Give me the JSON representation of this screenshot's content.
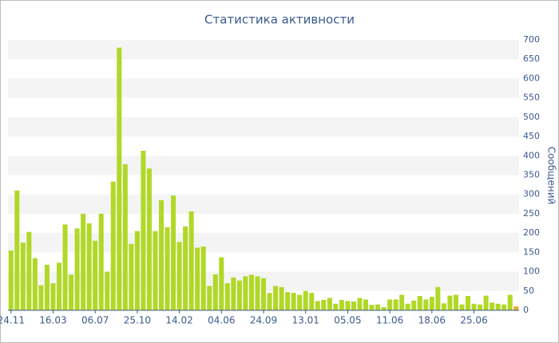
{
  "chart_data": {
    "type": "bar",
    "title": "Статистика активности",
    "y_label": "Сообщений",
    "categories": [
      "24.11",
      null,
      null,
      null,
      null,
      null,
      null,
      "16.03",
      null,
      null,
      null,
      null,
      null,
      null,
      "06.07",
      null,
      null,
      null,
      null,
      null,
      null,
      "25.10",
      null,
      null,
      null,
      null,
      null,
      null,
      "14.02",
      null,
      null,
      null,
      null,
      null,
      null,
      "04.06",
      null,
      null,
      null,
      null,
      null,
      null,
      "24.09",
      null,
      null,
      null,
      null,
      null,
      null,
      "13.01",
      null,
      null,
      null,
      null,
      null,
      null,
      "05.05",
      null,
      null,
      null,
      null,
      null,
      null,
      "11.06",
      null,
      null,
      null,
      null,
      null,
      null,
      "18.06",
      null,
      null,
      null,
      null,
      null,
      null,
      "25.06",
      null,
      null,
      null,
      null,
      null,
      null,
      null
    ],
    "values": [
      155,
      310,
      175,
      203,
      135,
      65,
      118,
      70,
      123,
      222,
      92,
      212,
      250,
      225,
      180,
      250,
      100,
      333,
      680,
      378,
      172,
      205,
      413,
      367,
      205,
      285,
      215,
      297,
      177,
      217,
      256,
      162,
      165,
      63,
      93,
      137,
      70,
      85,
      77,
      88,
      92,
      88,
      83,
      45,
      63,
      60,
      47,
      45,
      40,
      50,
      45,
      24,
      27,
      32,
      17,
      27,
      24,
      23,
      32,
      28,
      14,
      15,
      8,
      28,
      28,
      40,
      17,
      25,
      37,
      28,
      35,
      60,
      18,
      38,
      40,
      15,
      37,
      17,
      15,
      38,
      20,
      17,
      15,
      40,
      10
    ],
    "color": "#b0d827",
    "last_color": "#e8a838",
    "ylim": [
      0,
      700
    ],
    "yticks": [
      0,
      50,
      100,
      150,
      200,
      250,
      300,
      350,
      400,
      450,
      500,
      550,
      600,
      650,
      700
    ],
    "y_axis_side": "right",
    "grid": "stripes"
  }
}
